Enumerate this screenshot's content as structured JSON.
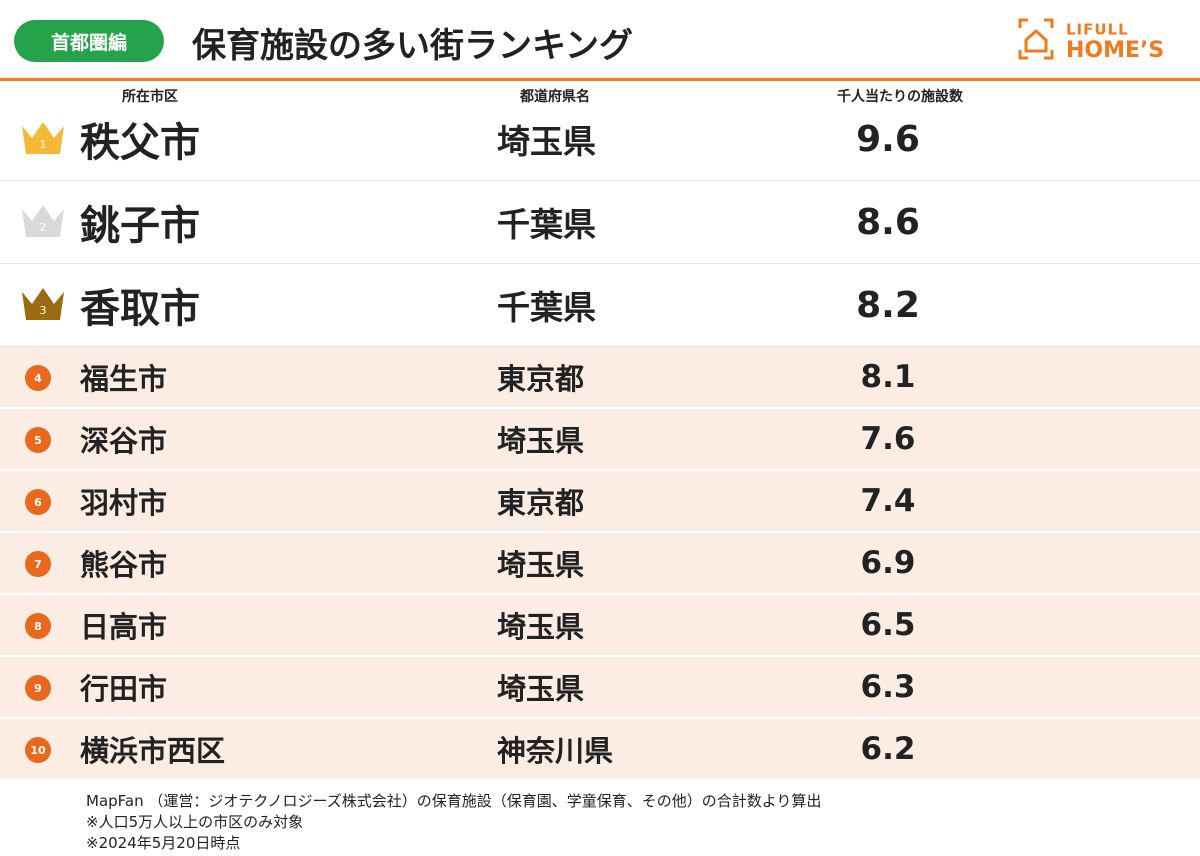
{
  "header": {
    "badge": "首都圏編",
    "title": "保育施設の多い街ランキング",
    "logo": {
      "line1": "LIFULL",
      "line2": "HOME’S"
    }
  },
  "table": {
    "columns": [
      "所在市区",
      "都道府県名",
      "千人当たりの施設数"
    ],
    "rows": [
      {
        "rank": 1,
        "city": "秩父市",
        "prefecture": "埼玉県",
        "value": 9.6
      },
      {
        "rank": 2,
        "city": "銚子市",
        "prefecture": "千葉県",
        "value": 8.6
      },
      {
        "rank": 3,
        "city": "香取市",
        "prefecture": "千葉県",
        "value": 8.2
      },
      {
        "rank": 4,
        "city": "福生市",
        "prefecture": "東京都",
        "value": 8.1
      },
      {
        "rank": 5,
        "city": "深谷市",
        "prefecture": "埼玉県",
        "value": 7.6
      },
      {
        "rank": 6,
        "city": "羽村市",
        "prefecture": "東京都",
        "value": 7.4
      },
      {
        "rank": 7,
        "city": "熊谷市",
        "prefecture": "埼玉県",
        "value": 6.9
      },
      {
        "rank": 8,
        "city": "日高市",
        "prefecture": "埼玉県",
        "value": 6.5
      },
      {
        "rank": 9,
        "city": "行田市",
        "prefecture": "埼玉県",
        "value": 6.3
      },
      {
        "rank": 10,
        "city": "横浜市西区",
        "prefecture": "神奈川県",
        "value": 6.2
      }
    ]
  },
  "footer": {
    "notes": [
      "MapFan （運営：ジオテクノロジーズ株式会社）の保育施設（保育園、学童保育、その他）の合計数より算出",
      "※人口5万人以上の市区のみ対象",
      "※2024年5月20日時点"
    ]
  }
}
